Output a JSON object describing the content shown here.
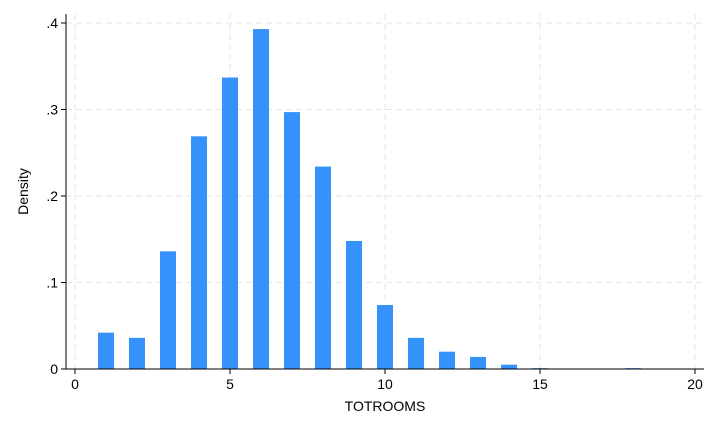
{
  "chart_data": {
    "type": "bar",
    "xlabel": "TOTROOMS",
    "ylabel": "Density",
    "xlim": [
      0,
      20
    ],
    "ylim": [
      0,
      0.4
    ],
    "x_ticks": [
      0,
      5,
      10,
      15,
      20
    ],
    "x_tick_labels": [
      "0",
      "5",
      "10",
      "15",
      "20"
    ],
    "y_ticks": [
      0,
      0.1,
      0.2,
      0.3,
      0.4
    ],
    "y_tick_labels": [
      "0",
      ".1",
      ".2",
      ".3",
      ".4"
    ],
    "grid": true,
    "bar_color": "#3592FB",
    "x": [
      1,
      2,
      3,
      4,
      5,
      6,
      7,
      8,
      9,
      10,
      11,
      12,
      13,
      14,
      15,
      16,
      17,
      18,
      19
    ],
    "values": [
      0.042,
      0.036,
      0.136,
      0.269,
      0.337,
      0.393,
      0.297,
      0.234,
      0.148,
      0.074,
      0.036,
      0.02,
      0.014,
      0.005,
      0.001,
      0.0003,
      0.0002,
      0.001,
      0.0001
    ]
  }
}
